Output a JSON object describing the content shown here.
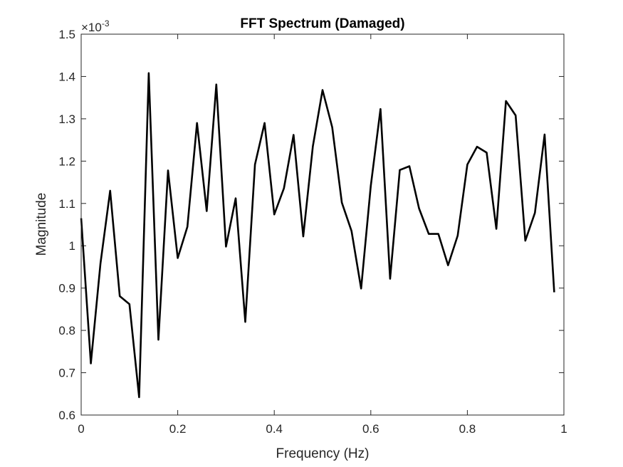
{
  "chart_data": {
    "type": "line",
    "title": "FFT Spectrum (Damaged)",
    "xlabel": "Frequency (Hz)",
    "ylabel": "Magnitude",
    "y_exponent_label": "×10",
    "y_exponent_power": "-3",
    "xlim": [
      0,
      1
    ],
    "ylim": [
      0.6,
      1.5
    ],
    "y_multiplier": 0.001,
    "xticks": [
      0,
      0.2,
      0.4,
      0.6,
      0.8,
      1
    ],
    "xtick_labels": [
      "0",
      "0.2",
      "0.4",
      "0.6",
      "0.8",
      "1"
    ],
    "yticks": [
      0.6,
      0.7,
      0.8,
      0.9,
      1.0,
      1.1,
      1.2,
      1.3,
      1.4,
      1.5
    ],
    "ytick_labels": [
      "0.6",
      "0.7",
      "0.8",
      "0.9",
      "1",
      "1.1",
      "1.2",
      "1.3",
      "1.4",
      "1.5"
    ],
    "grid": false,
    "line_color": "#000000",
    "series": [
      {
        "x": [
          0,
          0.02,
          0.04,
          0.06,
          0.08,
          0.1,
          0.12,
          0.14,
          0.16,
          0.18,
          0.2,
          0.22,
          0.24,
          0.26,
          0.28,
          0.3,
          0.32,
          0.34,
          0.36,
          0.38,
          0.4,
          0.42,
          0.44,
          0.46,
          0.48,
          0.5,
          0.52,
          0.54,
          0.56,
          0.58,
          0.6,
          0.62,
          0.64,
          0.66,
          0.68,
          0.7,
          0.72,
          0.74,
          0.76,
          0.78,
          0.8,
          0.82,
          0.84,
          0.86,
          0.88,
          0.9,
          0.92,
          0.94,
          0.96,
          0.98
        ],
        "values": [
          1.065,
          0.722,
          0.958,
          1.13,
          0.881,
          0.862,
          0.642,
          1.408,
          0.778,
          1.178,
          0.971,
          1.045,
          1.29,
          1.082,
          1.381,
          0.998,
          1.112,
          0.82,
          1.192,
          1.29,
          1.074,
          1.136,
          1.262,
          1.022,
          1.235,
          1.368,
          1.28,
          1.102,
          1.035,
          0.899,
          1.142,
          1.323,
          0.922,
          1.179,
          1.188,
          1.088,
          1.028,
          1.028,
          0.954,
          1.024,
          1.192,
          1.234,
          1.22,
          1.04,
          1.342,
          1.308,
          1.012,
          1.078,
          1.263,
          0.89
        ]
      }
    ]
  }
}
